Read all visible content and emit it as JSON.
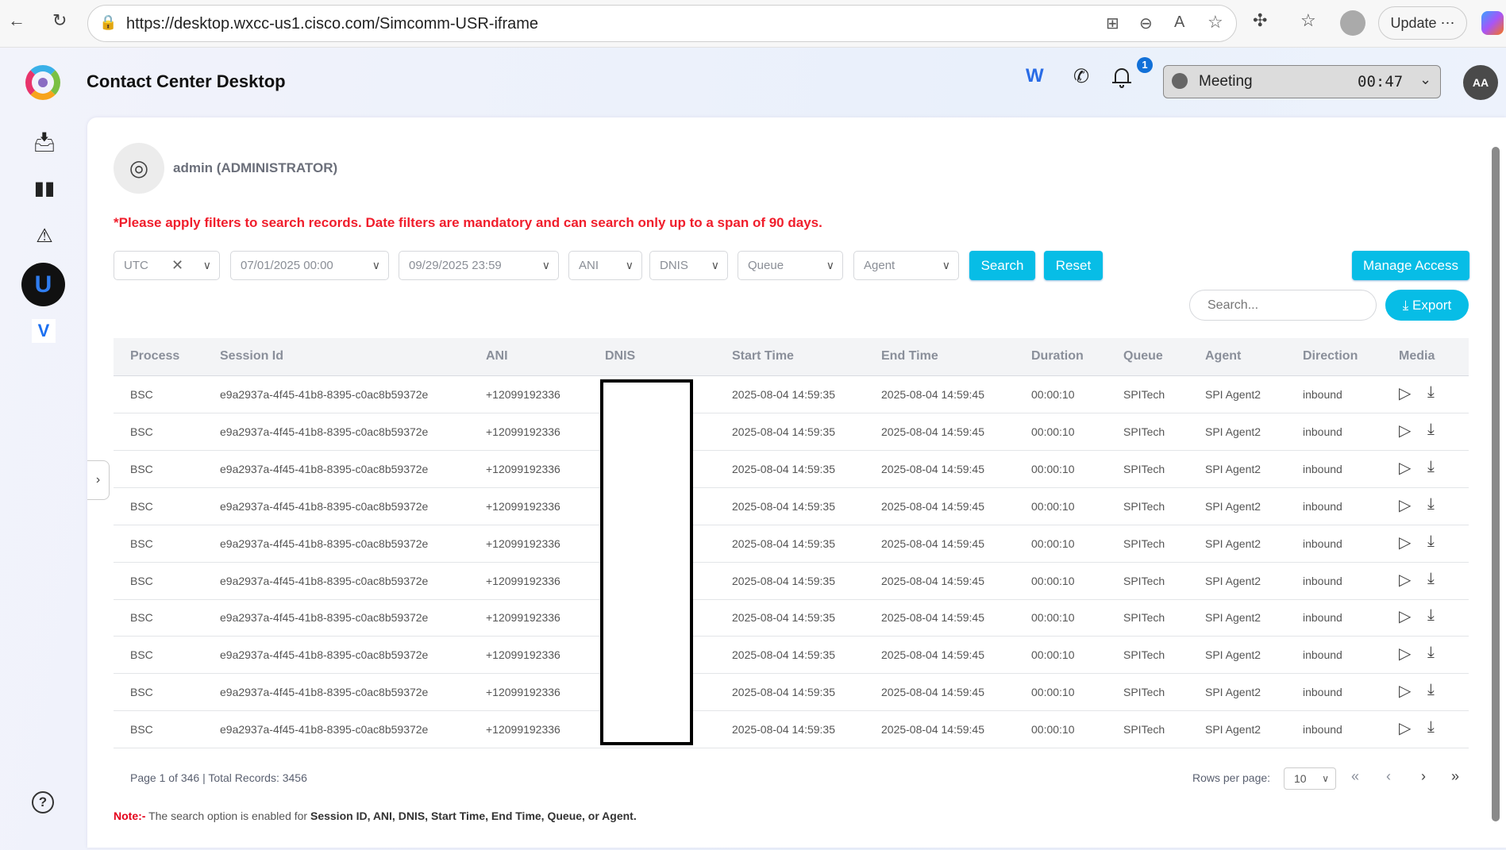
{
  "browser": {
    "url": "https://desktop.wxcc-us1.cisco.com/Simcomm-USR-iframe",
    "update_label": "Update"
  },
  "header": {
    "title": "Contact Center Desktop",
    "notification_count": "1",
    "status": "Meeting",
    "timer": "00:47",
    "avatar_initials": "AA"
  },
  "user": {
    "name": "admin (ADMINISTRATOR)"
  },
  "notice": "*Please apply filters to search records. Date filters are mandatory and can search only up to a span of 90 days.",
  "filters": {
    "timezone": "UTC",
    "start_date": "07/01/2025 00:00",
    "end_date": "09/29/2025 23:59",
    "ani": "ANI",
    "dnis": "DNIS",
    "queue": "Queue",
    "agent": "Agent"
  },
  "buttons": {
    "search": "Search",
    "reset": "Reset",
    "manage_access": "Manage Access",
    "export": "Export"
  },
  "search": {
    "placeholder": "Search..."
  },
  "table": {
    "columns": [
      "Process",
      "Session Id",
      "ANI",
      "DNIS",
      "Start Time",
      "End Time",
      "Duration",
      "Queue",
      "Agent",
      "Direction",
      "Media"
    ],
    "rows": [
      {
        "process": "BSC",
        "session_id": "e9a2937a-4f45-41b8-8395-c0ac8b59372e",
        "ani": "+12099192336",
        "dnis": "",
        "start": "2025-08-04 14:59:35",
        "end": "2025-08-04 14:59:45",
        "duration": "00:00:10",
        "queue": "SPITech",
        "agent": "SPI Agent2",
        "direction": "inbound"
      },
      {
        "process": "BSC",
        "session_id": "e9a2937a-4f45-41b8-8395-c0ac8b59372e",
        "ani": "+12099192336",
        "dnis": "",
        "start": "2025-08-04 14:59:35",
        "end": "2025-08-04 14:59:45",
        "duration": "00:00:10",
        "queue": "SPITech",
        "agent": "SPI Agent2",
        "direction": "inbound"
      },
      {
        "process": "BSC",
        "session_id": "e9a2937a-4f45-41b8-8395-c0ac8b59372e",
        "ani": "+12099192336",
        "dnis": "",
        "start": "2025-08-04 14:59:35",
        "end": "2025-08-04 14:59:45",
        "duration": "00:00:10",
        "queue": "SPITech",
        "agent": "SPI Agent2",
        "direction": "inbound"
      },
      {
        "process": "BSC",
        "session_id": "e9a2937a-4f45-41b8-8395-c0ac8b59372e",
        "ani": "+12099192336",
        "dnis": "",
        "start": "2025-08-04 14:59:35",
        "end": "2025-08-04 14:59:45",
        "duration": "00:00:10",
        "queue": "SPITech",
        "agent": "SPI Agent2",
        "direction": "inbound"
      },
      {
        "process": "BSC",
        "session_id": "e9a2937a-4f45-41b8-8395-c0ac8b59372e",
        "ani": "+12099192336",
        "dnis": "",
        "start": "2025-08-04 14:59:35",
        "end": "2025-08-04 14:59:45",
        "duration": "00:00:10",
        "queue": "SPITech",
        "agent": "SPI Agent2",
        "direction": "inbound"
      },
      {
        "process": "BSC",
        "session_id": "e9a2937a-4f45-41b8-8395-c0ac8b59372e",
        "ani": "+12099192336",
        "dnis": "",
        "start": "2025-08-04 14:59:35",
        "end": "2025-08-04 14:59:45",
        "duration": "00:00:10",
        "queue": "SPITech",
        "agent": "SPI Agent2",
        "direction": "inbound"
      },
      {
        "process": "BSC",
        "session_id": "e9a2937a-4f45-41b8-8395-c0ac8b59372e",
        "ani": "+12099192336",
        "dnis": "",
        "start": "2025-08-04 14:59:35",
        "end": "2025-08-04 14:59:45",
        "duration": "00:00:10",
        "queue": "SPITech",
        "agent": "SPI Agent2",
        "direction": "inbound"
      },
      {
        "process": "BSC",
        "session_id": "e9a2937a-4f45-41b8-8395-c0ac8b59372e",
        "ani": "+12099192336",
        "dnis": "",
        "start": "2025-08-04 14:59:35",
        "end": "2025-08-04 14:59:45",
        "duration": "00:00:10",
        "queue": "SPITech",
        "agent": "SPI Agent2",
        "direction": "inbound"
      },
      {
        "process": "BSC",
        "session_id": "e9a2937a-4f45-41b8-8395-c0ac8b59372e",
        "ani": "+12099192336",
        "dnis": "",
        "start": "2025-08-04 14:59:35",
        "end": "2025-08-04 14:59:45",
        "duration": "00:00:10",
        "queue": "SPITech",
        "agent": "SPI Agent2",
        "direction": "inbound"
      },
      {
        "process": "BSC",
        "session_id": "e9a2937a-4f45-41b8-8395-c0ac8b59372e",
        "ani": "+12099192336",
        "dnis": "",
        "start": "2025-08-04 14:59:35",
        "end": "2025-08-04 14:59:45",
        "duration": "00:00:10",
        "queue": "SPITech",
        "agent": "SPI Agent2",
        "direction": "inbound"
      }
    ]
  },
  "pagination": {
    "info": "Page 1 of 346 | Total Records: 3456",
    "rows_per_page_label": "Rows per page:",
    "rows_per_page": "10"
  },
  "note": {
    "label": "Note:-",
    "text": " The search option is enabled for ",
    "fields": "Session ID, ANI, DNIS, Start Time, End Time, Queue, or Agent."
  },
  "colors": {
    "accent": "#07bde6",
    "warning": "#f01e2c"
  }
}
